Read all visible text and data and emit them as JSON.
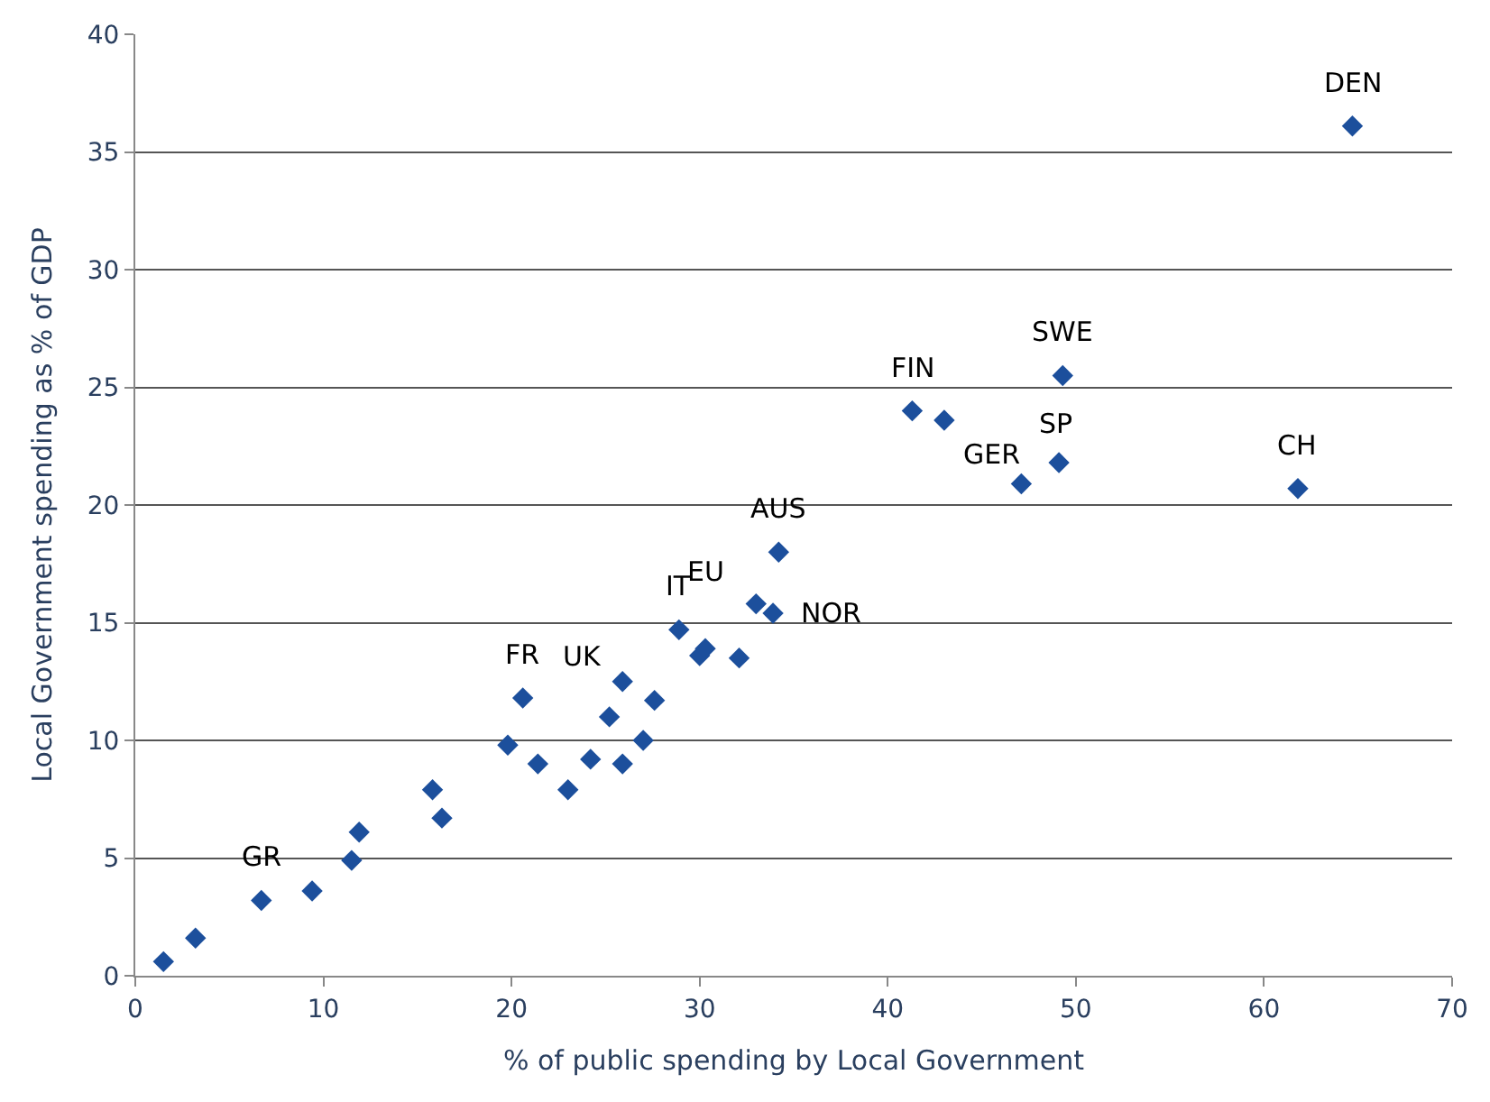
{
  "chart_data": {
    "type": "scatter",
    "xlabel": "% of public spending by Local Government",
    "ylabel": "Local Government spending as % of GDP",
    "x": [
      1.5,
      3.2,
      6.7,
      9.4,
      11.5,
      11.9,
      15.8,
      16.3,
      19.8,
      20.6,
      21.4,
      23.0,
      24.2,
      25.2,
      25.9,
      25.9,
      27.0,
      27.6,
      28.9,
      30.0,
      30.3,
      32.1,
      33.0,
      33.9,
      34.2,
      41.3,
      43.0,
      47.1,
      49.1,
      49.3,
      61.8,
      64.7
    ],
    "values": [
      0.6,
      1.6,
      3.2,
      3.6,
      4.9,
      6.1,
      7.9,
      6.7,
      9.8,
      11.8,
      9.0,
      7.9,
      9.2,
      11.0,
      12.5,
      9.0,
      10.0,
      11.7,
      14.7,
      13.6,
      13.9,
      13.5,
      15.8,
      15.4,
      18.0,
      24.0,
      23.6,
      20.9,
      21.8,
      25.5,
      20.7,
      36.1
    ],
    "color": "#1c4f9c",
    "marker": "diamond",
    "xlim": [
      0,
      70
    ],
    "xticks": [
      0,
      10,
      20,
      30,
      40,
      50,
      60,
      70
    ],
    "ylim": [
      0,
      40
    ],
    "yticks": [
      0,
      5,
      10,
      15,
      20,
      25,
      30,
      35,
      40
    ],
    "grid": "y",
    "annotations": [
      {
        "text": "GR",
        "x": 6.7,
        "y": 3.2
      },
      {
        "text": "FR",
        "x": 20.6,
        "y": 11.8
      },
      {
        "text": "UK",
        "x": 25.9,
        "y": 12.5
      },
      {
        "text": "IT",
        "x": 28.9,
        "y": 14.7
      },
      {
        "text": "EU",
        "x": 33.0,
        "y": 15.8
      },
      {
        "text": "AUS",
        "x": 34.2,
        "y": 18.0
      },
      {
        "text": "NOR",
        "x": 33.9,
        "y": 15.4
      },
      {
        "text": "FIN",
        "x": 41.3,
        "y": 24.0
      },
      {
        "text": "GER",
        "x": 47.1,
        "y": 20.9
      },
      {
        "text": "SP",
        "x": 49.1,
        "y": 21.8
      },
      {
        "text": "SWE",
        "x": 49.3,
        "y": 25.5
      },
      {
        "text": "CH",
        "x": 61.8,
        "y": 20.7
      },
      {
        "text": "DEN",
        "x": 64.7,
        "y": 36.1
      }
    ]
  }
}
